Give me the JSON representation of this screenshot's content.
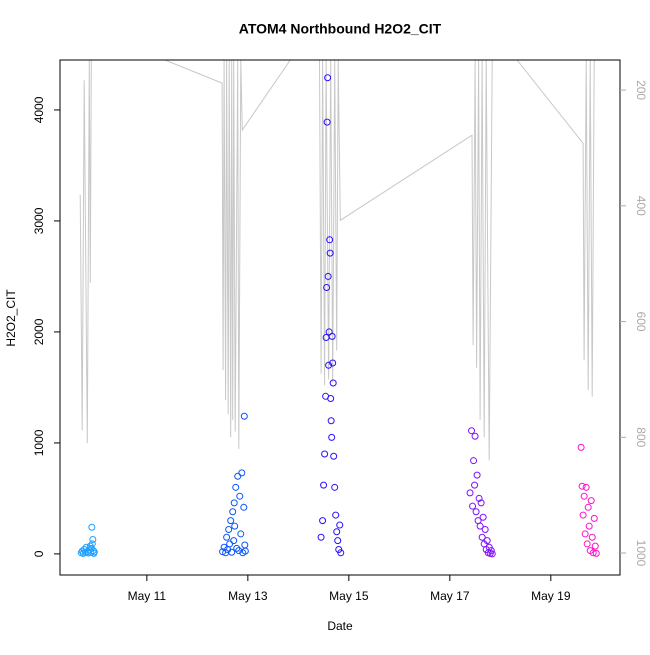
{
  "chart_data": {
    "type": "scatter",
    "title": "ATOM4 Northbound H2O2_CIT",
    "xlabel": "Date",
    "ylabel": "H2O2_CIT",
    "xlim": [
      9.28,
      20.37
    ],
    "xticks": [
      {
        "value": 11,
        "label": "May 11"
      },
      {
        "value": 13,
        "label": "May 13"
      },
      {
        "value": 15,
        "label": "May 15"
      },
      {
        "value": 17,
        "label": "May 17"
      },
      {
        "value": 19,
        "label": "May 19"
      }
    ],
    "ylim": [
      -190,
      4450
    ],
    "yticks": [
      0,
      1000,
      2000,
      3000,
      4000
    ],
    "y2lim": [
      1038,
      148
    ],
    "y2ticks": [
      200,
      400,
      600,
      800,
      1000
    ],
    "series": [
      {
        "color": "#1ea0ff",
        "x": [
          9.7,
          9.72,
          9.74,
          9.76,
          9.78,
          9.8,
          9.82,
          9.84,
          9.86,
          9.88,
          9.89,
          9.9,
          9.91,
          9.92,
          9.93,
          9.94,
          9.95,
          9.96
        ],
        "values": [
          10,
          25,
          5,
          40,
          15,
          60,
          20,
          8,
          35,
          70,
          12,
          50,
          240,
          90,
          130,
          30,
          5,
          18
        ]
      },
      {
        "color": "#0a55ff",
        "x": [
          12.5,
          12.53,
          12.56,
          12.58,
          12.6,
          12.62,
          12.64,
          12.66,
          12.68,
          12.7,
          12.72,
          12.73,
          12.74,
          12.76,
          12.78,
          12.8,
          12.82,
          12.84,
          12.86,
          12.88,
          12.9,
          12.92,
          12.93,
          12.94,
          12.95
        ],
        "values": [
          20,
          60,
          10,
          150,
          40,
          220,
          90,
          300,
          15,
          380,
          120,
          460,
          250,
          600,
          50,
          700,
          30,
          520,
          180,
          730,
          10,
          420,
          1240,
          80,
          25
        ]
      },
      {
        "color": "#2a10ff",
        "x": [
          14.45,
          14.48,
          14.5,
          14.52,
          14.54,
          14.55,
          14.56,
          14.57,
          14.58,
          14.59,
          14.6,
          14.61,
          14.62,
          14.63,
          14.64,
          14.65,
          14.66,
          14.67,
          14.68,
          14.69,
          14.7,
          14.72,
          14.74,
          14.76,
          14.78,
          14.8,
          14.82,
          14.84
        ],
        "values": [
          150,
          300,
          620,
          900,
          1420,
          1950,
          2400,
          3890,
          4290,
          2500,
          1700,
          2000,
          2830,
          2710,
          1400,
          1200,
          1050,
          1960,
          1720,
          1540,
          880,
          600,
          350,
          200,
          120,
          40,
          260,
          10
        ]
      },
      {
        "color": "#8010ff",
        "x": [
          17.4,
          17.43,
          17.45,
          17.47,
          17.49,
          17.5,
          17.52,
          17.54,
          17.56,
          17.58,
          17.6,
          17.62,
          17.64,
          17.66,
          17.68,
          17.7,
          17.72,
          17.74,
          17.76,
          17.78,
          17.8,
          17.82,
          17.84
        ],
        "values": [
          550,
          1110,
          430,
          840,
          620,
          1060,
          380,
          710,
          300,
          500,
          250,
          460,
          150,
          330,
          90,
          220,
          40,
          120,
          10,
          60,
          5,
          30,
          0
        ]
      },
      {
        "color": "#ff10cc",
        "x": [
          19.6,
          19.62,
          19.64,
          19.66,
          19.68,
          19.7,
          19.72,
          19.74,
          19.76,
          19.78,
          19.8,
          19.82,
          19.84,
          19.86,
          19.88,
          19.9
        ],
        "values": [
          960,
          610,
          350,
          520,
          180,
          600,
          90,
          420,
          250,
          30,
          480,
          150,
          10,
          320,
          70,
          5
        ]
      }
    ],
    "line": {
      "color": "#c8c8c8",
      "axis": "y2",
      "x": [
        9.68,
        9.72,
        9.76,
        9.82,
        9.86,
        9.88,
        9.9,
        11.36,
        12.49,
        12.51,
        12.53,
        12.56,
        12.58,
        12.61,
        12.63,
        12.66,
        12.68,
        12.7,
        12.72,
        12.75,
        12.8,
        12.82,
        12.86,
        12.89,
        13.84,
        14.42,
        14.45,
        14.48,
        14.52,
        14.55,
        14.6,
        14.64,
        14.68,
        14.72,
        14.76,
        14.79,
        14.83,
        17.44,
        17.46,
        17.5,
        17.53,
        17.57,
        17.6,
        17.64,
        17.68,
        17.72,
        17.78,
        17.84,
        18.33,
        19.64,
        19.66,
        19.7,
        19.74,
        19.78,
        19.82,
        19.86
      ],
      "values": [
        381,
        788,
        183,
        810,
        148,
        533,
        148,
        148,
        188,
        684,
        148,
        736,
        148,
        760,
        148,
        800,
        148,
        770,
        148,
        790,
        148,
        820,
        148,
        269,
        148,
        148,
        690,
        148,
        710,
        148,
        700,
        148,
        705,
        148,
        650,
        148,
        425,
        278,
        641,
        148,
        680,
        148,
        770,
        148,
        800,
        148,
        840,
        148,
        148,
        292,
        667,
        148,
        718,
        148,
        730,
        148
      ]
    }
  }
}
